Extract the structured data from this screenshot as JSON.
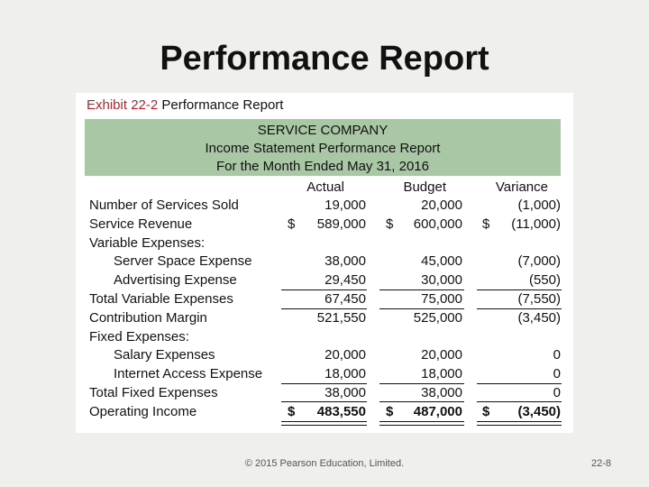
{
  "slide_title": "Performance Report",
  "exhibit": {
    "number": "Exhibit 22-2",
    "title": "Performance Report"
  },
  "header": {
    "company": "SERVICE COMPANY",
    "statement": "Income Statement Performance Report",
    "period": "For the Month Ended May 31, 2016"
  },
  "columns": {
    "actual": "Actual",
    "budget": "Budget",
    "variance": "Variance"
  },
  "currency": "$",
  "rows": [
    {
      "label": "Number of Services Sold",
      "actual": "19,000",
      "budget": "20,000",
      "variance": "(1,000)"
    },
    {
      "label": "Service Revenue",
      "actual": "589,000",
      "budget": "600,000",
      "variance": "(11,000)"
    },
    {
      "label": "Variable Expenses:",
      "actual": "",
      "budget": "",
      "variance": ""
    },
    {
      "label": "Server Space Expense",
      "actual": "38,000",
      "budget": "45,000",
      "variance": "(7,000)"
    },
    {
      "label": "Advertising Expense",
      "actual": "29,450",
      "budget": "30,000",
      "variance": "(550)"
    },
    {
      "label": "Total Variable Expenses",
      "actual": "67,450",
      "budget": "75,000",
      "variance": "(7,550)"
    },
    {
      "label": "Contribution Margin",
      "actual": "521,550",
      "budget": "525,000",
      "variance": "(3,450)"
    },
    {
      "label": "Fixed Expenses:",
      "actual": "",
      "budget": "",
      "variance": ""
    },
    {
      "label": "Salary Expenses",
      "actual": "20,000",
      "budget": "20,000",
      "variance": "0"
    },
    {
      "label": "Internet Access Expense",
      "actual": "18,000",
      "budget": "18,000",
      "variance": "0"
    },
    {
      "label": "Total Fixed Expenses",
      "actual": "38,000",
      "budget": "38,000",
      "variance": "0"
    },
    {
      "label": "Operating Income",
      "actual": "483,550",
      "budget": "487,000",
      "variance": "(3,450)"
    }
  ],
  "footer": "© 2015 Pearson Education, Limited.",
  "page_number": "22-8"
}
